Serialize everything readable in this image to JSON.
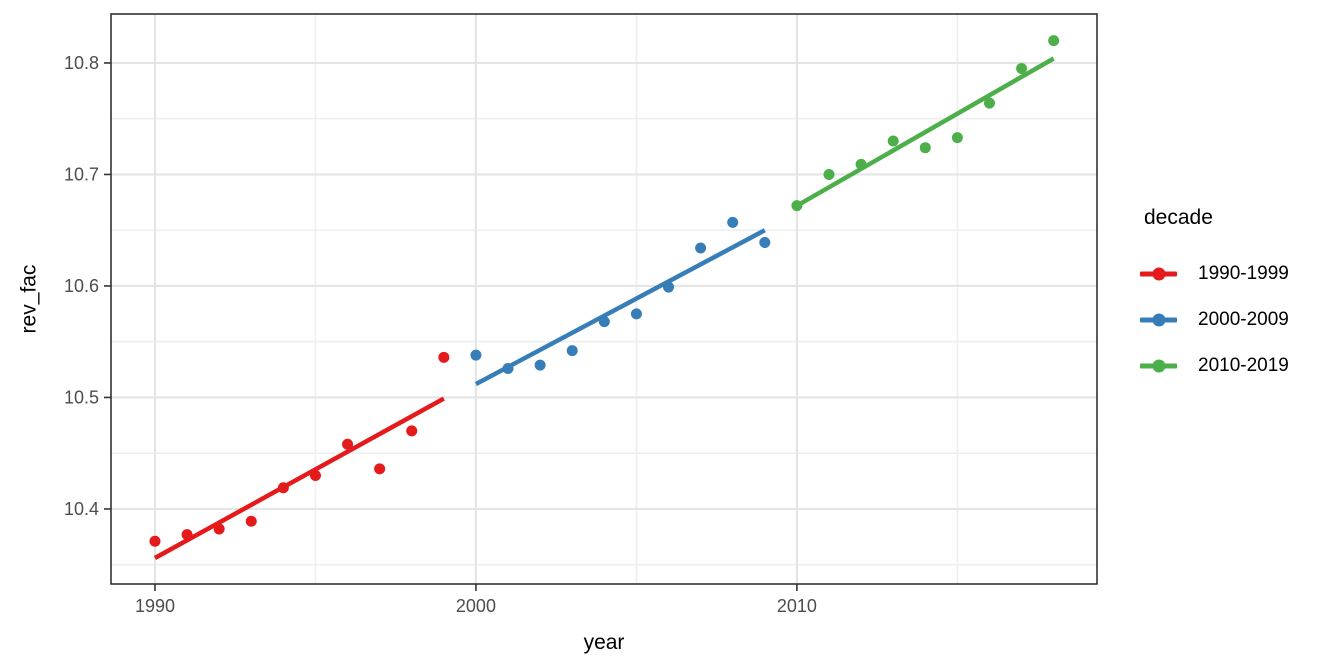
{
  "chart_data": {
    "type": "scatter",
    "title": "",
    "xlabel": "year",
    "ylabel": "rev_fac",
    "legend_title": "decade",
    "legend_position": "right",
    "xlim": [
      1988.63,
      2019.35
    ],
    "ylim": [
      10.3327,
      10.8439
    ],
    "x_ticks": [
      1990,
      2000,
      2010
    ],
    "y_ticks": [
      10.4,
      10.5,
      10.6,
      10.7,
      10.8
    ],
    "x_minor_gridlines": [
      1995,
      2005,
      2015
    ],
    "y_minor_gridlines": [
      10.35,
      10.45,
      10.55,
      10.65,
      10.75
    ],
    "grid": "on",
    "panel_background": "#ffffff",
    "panel_border_color": "#333333",
    "major_grid_color": "#e5e5e5",
    "minor_grid_color": "#efefef",
    "tick_label_color": "#4d4d4d",
    "series": [
      {
        "name": "1990-1999",
        "color": "#e41a1c",
        "x": [
          1990,
          1991,
          1992,
          1993,
          1994,
          1995,
          1996,
          1997,
          1998,
          1999
        ],
        "y": [
          10.371,
          10.377,
          10.382,
          10.389,
          10.419,
          10.43,
          10.458,
          10.436,
          10.47,
          10.536
        ],
        "trend": {
          "x1": 1990,
          "y1": 10.356,
          "x2": 1999,
          "y2": 10.499
        }
      },
      {
        "name": "2000-2009",
        "color": "#377eb8",
        "x": [
          2000,
          2001,
          2002,
          2003,
          2004,
          2005,
          2006,
          2007,
          2008,
          2009
        ],
        "y": [
          10.538,
          10.526,
          10.529,
          10.542,
          10.568,
          10.575,
          10.599,
          10.634,
          10.657,
          10.639
        ],
        "trend": {
          "x1": 2000,
          "y1": 10.512,
          "x2": 2009,
          "y2": 10.65
        }
      },
      {
        "name": "2010-2019",
        "color": "#4daf4a",
        "x": [
          2010,
          2011,
          2012,
          2013,
          2014,
          2015,
          2016,
          2017,
          2018
        ],
        "y": [
          10.672,
          10.7,
          10.709,
          10.73,
          10.724,
          10.733,
          10.764,
          10.795,
          10.82
        ],
        "trend": {
          "x1": 2010,
          "y1": 10.672,
          "x2": 2018,
          "y2": 10.804
        }
      }
    ]
  }
}
